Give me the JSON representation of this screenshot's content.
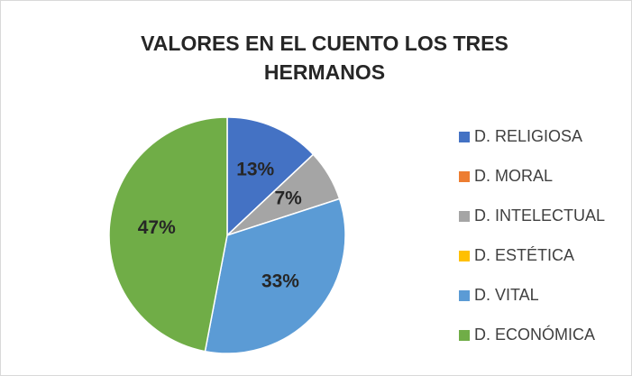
{
  "chart_data": {
    "type": "pie",
    "title": "VALORES EN EL CUENTO LOS TRES HERMANOS",
    "categories": [
      "D. RELIGIOSA",
      "D.  MORAL",
      "D. INTELECTUAL",
      "D. ESTÉTICA",
      "D. VITAL",
      "D. ECONÓMICA"
    ],
    "values": [
      13,
      0,
      7,
      0,
      33,
      47
    ],
    "value_labels": [
      "13%",
      null,
      "7%",
      null,
      "33%",
      "47%"
    ],
    "colors": [
      "#4472c4",
      "#ed7d31",
      "#a5a5a5",
      "#ffc000",
      "#5b9bd5",
      "#70ad47"
    ],
    "legend": "right"
  }
}
